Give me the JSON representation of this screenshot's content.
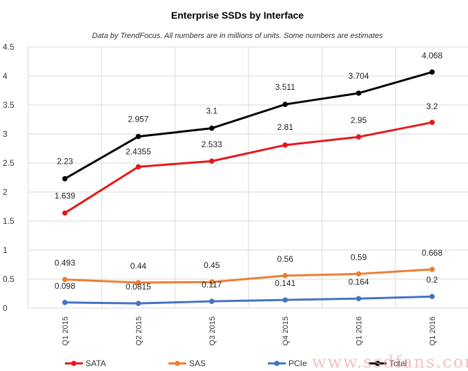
{
  "chart_data": {
    "type": "line",
    "title": "Enterprise SSDs by Interface",
    "subtitle": "Data by TrendFocus. All numbers are in millions of units. Some numbers are estimates",
    "categories": [
      "Q1 2015",
      "Q2 2015",
      "Q3 2015",
      "Q4 2015",
      "Q1 2016",
      "Q1 2016"
    ],
    "ylim": [
      0,
      4.5
    ],
    "yticks": [
      "0",
      "0.5",
      "1",
      "1.5",
      "2",
      "2.5",
      "3",
      "3.5",
      "4",
      "4.5"
    ],
    "grid": true,
    "legend_position": "bottom",
    "series": [
      {
        "name": "SATA",
        "color": "#e8161b",
        "values": [
          1.639,
          2.4355,
          2.533,
          2.81,
          2.95,
          3.2
        ],
        "labels": [
          "1.639",
          "2.4355",
          "2.533",
          "2.81",
          "2.95",
          "3.2"
        ]
      },
      {
        "name": "SAS",
        "color": "#ed7d31",
        "values": [
          0.493,
          0.44,
          0.45,
          0.56,
          0.59,
          0.668
        ],
        "labels": [
          "0.493",
          "0.44",
          "0.45",
          "0.56",
          "0.59",
          "0.668"
        ]
      },
      {
        "name": "PCIe",
        "color": "#4472c4",
        "values": [
          0.098,
          0.0815,
          0.117,
          0.141,
          0.164,
          0.2
        ],
        "labels": [
          "0.098",
          "0.0815",
          "0.117",
          "0.141",
          "0.164",
          "0.2"
        ]
      },
      {
        "name": "Total",
        "color": "#000000",
        "values": [
          2.23,
          2.957,
          3.1,
          3.511,
          3.704,
          4.068
        ],
        "labels": [
          "2.23",
          "2.957",
          "3.1",
          "3.511",
          "3.704",
          "4.068"
        ]
      }
    ]
  },
  "watermark": "www.ssdfans.com"
}
